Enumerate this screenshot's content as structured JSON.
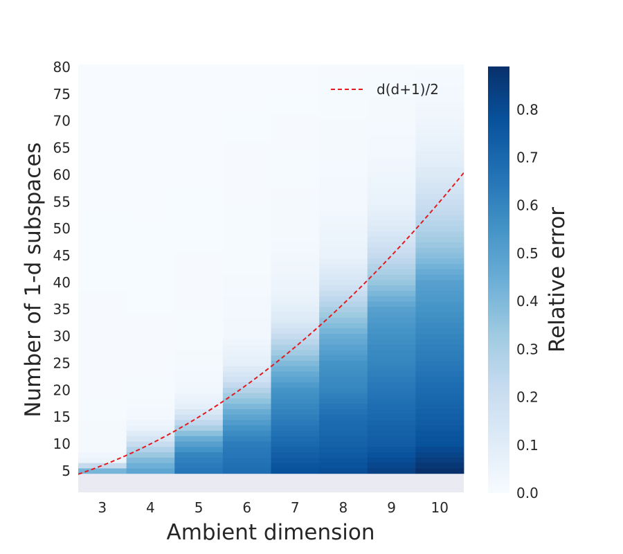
{
  "chart_data": {
    "type": "heatmap",
    "xlabel": "Ambient dimension",
    "ylabel": "Number of 1-d subspaces",
    "colorbar_label": "Relative error",
    "x": [
      3,
      4,
      5,
      6,
      7,
      8,
      9,
      10
    ],
    "y_ticks": [
      5,
      10,
      15,
      20,
      25,
      30,
      35,
      40,
      45,
      50,
      55,
      60,
      65,
      70,
      75,
      80
    ],
    "ylim": [
      1,
      80
    ],
    "y_start": 5,
    "y_end": 80,
    "colorbar_ticks": [
      "0.0",
      "0.1",
      "0.2",
      "0.3",
      "0.4",
      "0.5",
      "0.6",
      "0.7",
      "0.8"
    ],
    "colorbar_range": [
      0.0,
      0.89
    ],
    "colormap": "Blues",
    "cmap_stops": [
      "#f7fbff",
      "#deebf7",
      "#c6dbef",
      "#9ecae1",
      "#6baed6",
      "#4292c6",
      "#2171b5",
      "#08519c",
      "#08306b"
    ],
    "background_color": "#eaeaf2",
    "columns": [
      {
        "d": 3,
        "profile": [
          [
            5,
            0.42
          ],
          [
            6,
            0.22
          ],
          [
            7,
            0.05
          ],
          [
            9,
            0.015
          ],
          [
            20,
            0.005
          ],
          [
            80,
            0.0
          ]
        ]
      },
      {
        "d": 4,
        "profile": [
          [
            5,
            0.48
          ],
          [
            7,
            0.4
          ],
          [
            9,
            0.28
          ],
          [
            11,
            0.15
          ],
          [
            13,
            0.06
          ],
          [
            15,
            0.02
          ],
          [
            20,
            0.008
          ],
          [
            28,
            0.004
          ],
          [
            80,
            0.0
          ]
        ]
      },
      {
        "d": 5,
        "profile": [
          [
            5,
            0.65
          ],
          [
            8,
            0.6
          ],
          [
            11,
            0.45
          ],
          [
            13,
            0.3
          ],
          [
            15,
            0.18
          ],
          [
            17,
            0.08
          ],
          [
            20,
            0.03
          ],
          [
            25,
            0.012
          ],
          [
            40,
            0.004
          ],
          [
            80,
            0.0
          ]
        ]
      },
      {
        "d": 6,
        "profile": [
          [
            5,
            0.68
          ],
          [
            10,
            0.63
          ],
          [
            13,
            0.55
          ],
          [
            16,
            0.45
          ],
          [
            19,
            0.32
          ],
          [
            22,
            0.18
          ],
          [
            25,
            0.08
          ],
          [
            30,
            0.03
          ],
          [
            42,
            0.01
          ],
          [
            80,
            0.0
          ]
        ]
      },
      {
        "d": 7,
        "profile": [
          [
            5,
            0.78
          ],
          [
            10,
            0.7
          ],
          [
            15,
            0.62
          ],
          [
            20,
            0.55
          ],
          [
            25,
            0.4
          ],
          [
            30,
            0.22
          ],
          [
            33,
            0.12
          ],
          [
            38,
            0.05
          ],
          [
            48,
            0.015
          ],
          [
            70,
            0.004
          ],
          [
            80,
            0.0
          ]
        ]
      },
      {
        "d": 8,
        "profile": [
          [
            5,
            0.79
          ],
          [
            10,
            0.72
          ],
          [
            15,
            0.68
          ],
          [
            20,
            0.6
          ],
          [
            25,
            0.55
          ],
          [
            30,
            0.45
          ],
          [
            35,
            0.3
          ],
          [
            40,
            0.15
          ],
          [
            45,
            0.06
          ],
          [
            55,
            0.02
          ],
          [
            80,
            0.005
          ]
        ]
      },
      {
        "d": 9,
        "profile": [
          [
            5,
            0.83
          ],
          [
            10,
            0.74
          ],
          [
            15,
            0.7
          ],
          [
            20,
            0.65
          ],
          [
            25,
            0.6
          ],
          [
            30,
            0.56
          ],
          [
            35,
            0.5
          ],
          [
            40,
            0.35
          ],
          [
            45,
            0.22
          ],
          [
            50,
            0.12
          ],
          [
            55,
            0.06
          ],
          [
            65,
            0.02
          ],
          [
            80,
            0.005
          ]
        ]
      },
      {
        "d": 10,
        "profile": [
          [
            5,
            0.89
          ],
          [
            10,
            0.78
          ],
          [
            15,
            0.73
          ],
          [
            20,
            0.69
          ],
          [
            25,
            0.64
          ],
          [
            30,
            0.6
          ],
          [
            35,
            0.55
          ],
          [
            40,
            0.5
          ],
          [
            45,
            0.38
          ],
          [
            50,
            0.28
          ],
          [
            55,
            0.2
          ],
          [
            60,
            0.12
          ],
          [
            65,
            0.07
          ],
          [
            70,
            0.04
          ],
          [
            75,
            0.02
          ],
          [
            80,
            0.01
          ]
        ]
      }
    ],
    "curve": {
      "label": "d(d+1)/2",
      "formula": "d*(d+1)/2",
      "x_range": [
        2.5,
        10.5
      ],
      "color": "#e41a1c",
      "style": "dashed"
    },
    "legend_position": "top-right",
    "grid": false
  }
}
